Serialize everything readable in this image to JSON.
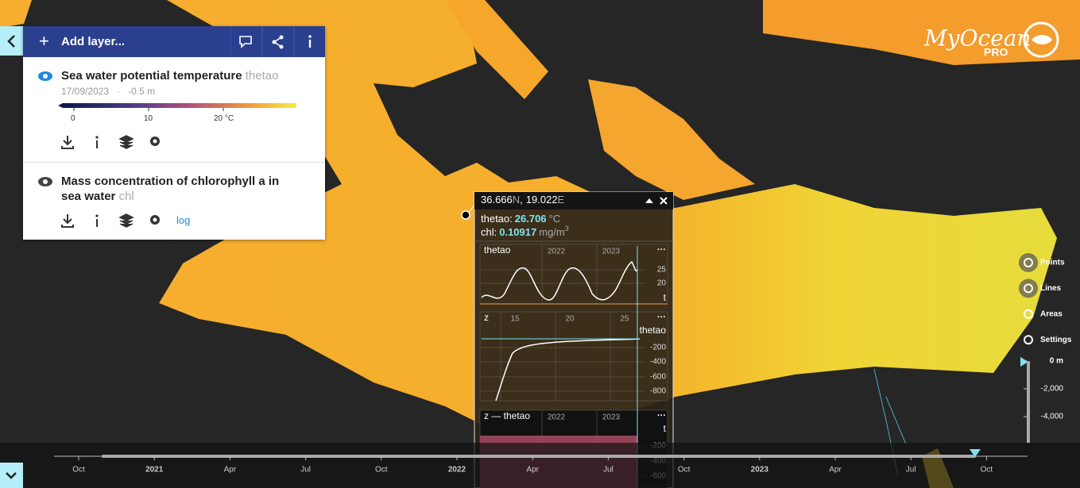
{
  "sidebar": {
    "add_layer": "Add layer...",
    "layers": [
      {
        "name": "Sea water potential temperature",
        "variable": "thetao",
        "date": "17/09/2023",
        "separator": "·",
        "depth": "-0.5 m",
        "colorbar_ticks": [
          "0",
          "10",
          "20 °C"
        ]
      },
      {
        "name": "Mass concentration of chlorophyll a in sea water",
        "variable": "chl",
        "scale": "log"
      }
    ]
  },
  "logo": {
    "name": "MyOcean",
    "tier": "PRO"
  },
  "tools": [
    "Points",
    "Lines",
    "Areas",
    "Settings"
  ],
  "depth_scale": [
    "0 m",
    "-2,000",
    "-4,000"
  ],
  "timeline": [
    "Oct",
    "2021",
    "Apr",
    "Jul",
    "Oct",
    "2022",
    "Apr",
    "Jul",
    "Oct",
    "2023",
    "Apr",
    "Jul",
    "Oct"
  ],
  "popup": {
    "lat": "36.666",
    "lat_hemisphere": "N",
    "coordinate_separator": ",",
    "lon": "19.022",
    "lon_hemisphere": "E",
    "readings": [
      {
        "label": "thetao:",
        "value": "26.706",
        "unit": "°C"
      },
      {
        "label": "chl:",
        "value": "0.10917",
        "unit": "mg/m",
        "unit_power": "3"
      }
    ],
    "charts": [
      {
        "title": "thetao",
        "x_labels": [
          "2022",
          "2023"
        ],
        "y_labels": [
          "25",
          "20"
        ],
        "axis": "t"
      },
      {
        "title": "z",
        "x_labels": [
          "15",
          "20",
          "25"
        ],
        "y_labels": [
          "-200",
          "-400",
          "-600",
          "-800"
        ],
        "axis": "thetao"
      },
      {
        "title": "z — thetao",
        "x_labels": [
          "2022",
          "2023"
        ],
        "y_labels": [
          "-200",
          "-400",
          "-600"
        ],
        "axis": "t"
      }
    ]
  }
}
